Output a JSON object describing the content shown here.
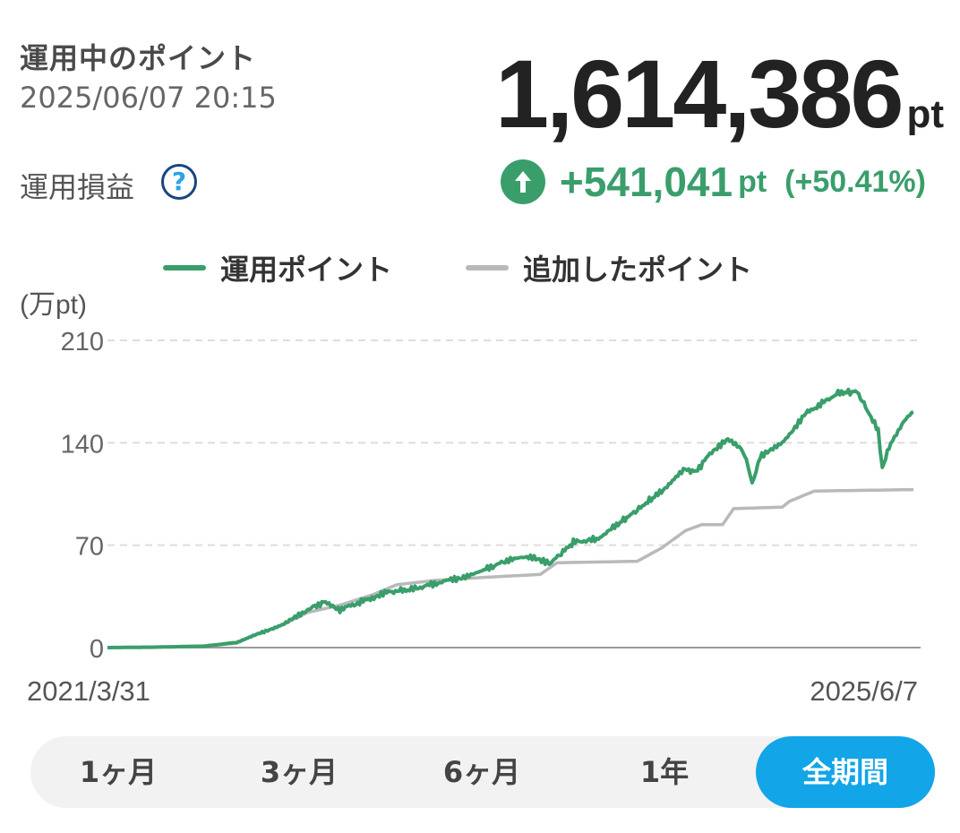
{
  "header": {
    "title": "運用中のポイント",
    "timestamp": "2025/06/07 20:15",
    "total_value": "1,614,386",
    "total_unit": "pt",
    "pl_label": "運用損益",
    "help_symbol": "?",
    "pl_value": "+541,041",
    "pl_unit": "pt",
    "pl_percent": "(+50.41%)"
  },
  "colors": {
    "accent_green": "#3a9e6b",
    "gray_line": "#b9b9b9",
    "active_tab": "#12a5e8"
  },
  "icons": {
    "help": "question-circle-icon",
    "pl": "arrow-up-circle-icon"
  },
  "chart_data": {
    "type": "line",
    "ylabel": "(万pt)",
    "ylim": [
      0,
      210
    ],
    "yticks": [
      "210",
      "140",
      "70",
      "0"
    ],
    "ytick_values": [
      210,
      140,
      70,
      0
    ],
    "x_start_label": "2021/3/31",
    "x_end_label": "2025/6/7",
    "x_start": "2021-03-31",
    "x_end": "2025-06-07",
    "grid": true,
    "legend_position": "top",
    "series": [
      {
        "name": "運用ポイント",
        "color": "#3a9e6b",
        "points": [
          [
            "2021-03-31",
            0
          ],
          [
            "2021-06-30",
            0.3
          ],
          [
            "2021-10-01",
            1.0
          ],
          [
            "2021-12-01",
            3.5
          ],
          [
            "2022-01-15",
            10
          ],
          [
            "2022-03-01",
            16
          ],
          [
            "2022-04-15",
            26
          ],
          [
            "2022-05-15",
            31
          ],
          [
            "2022-06-15",
            26
          ],
          [
            "2022-08-15",
            34
          ],
          [
            "2022-09-15",
            38
          ],
          [
            "2022-11-01",
            40
          ],
          [
            "2022-12-15",
            44
          ],
          [
            "2023-02-01",
            48
          ],
          [
            "2023-03-15",
            53
          ],
          [
            "2023-05-01",
            60
          ],
          [
            "2023-06-15",
            62
          ],
          [
            "2023-07-20",
            58
          ],
          [
            "2023-09-01",
            72
          ],
          [
            "2023-10-15",
            74
          ],
          [
            "2023-11-15",
            82
          ],
          [
            "2023-12-31",
            94
          ],
          [
            "2024-02-15",
            107
          ],
          [
            "2024-03-31",
            122
          ],
          [
            "2024-04-20",
            120
          ],
          [
            "2024-05-20",
            134
          ],
          [
            "2024-06-20",
            142
          ],
          [
            "2024-07-15",
            136
          ],
          [
            "2024-07-25",
            128
          ],
          [
            "2024-08-05",
            112
          ],
          [
            "2024-08-20",
            130
          ],
          [
            "2024-10-01",
            140
          ],
          [
            "2024-11-15",
            160
          ],
          [
            "2025-01-15",
            174
          ],
          [
            "2025-02-20",
            175
          ],
          [
            "2025-03-15",
            160
          ],
          [
            "2025-04-01",
            148
          ],
          [
            "2025-04-09",
            123
          ],
          [
            "2025-04-25",
            140
          ],
          [
            "2025-05-20",
            155
          ],
          [
            "2025-06-07",
            161
          ]
        ]
      },
      {
        "name": "追加したポイント",
        "color": "#b9b9b9",
        "points": [
          [
            "2021-03-31",
            0
          ],
          [
            "2021-10-01",
            1.0
          ],
          [
            "2021-12-01",
            3
          ],
          [
            "2022-01-15",
            10
          ],
          [
            "2022-03-01",
            16
          ],
          [
            "2022-04-15",
            24
          ],
          [
            "2022-06-15",
            29
          ],
          [
            "2022-08-15",
            36
          ],
          [
            "2022-10-01",
            43
          ],
          [
            "2022-12-15",
            46
          ],
          [
            "2023-03-15",
            48
          ],
          [
            "2023-06-30",
            50
          ],
          [
            "2023-08-01",
            58
          ],
          [
            "2023-12-31",
            59
          ],
          [
            "2024-02-15",
            68
          ],
          [
            "2024-04-01",
            80
          ],
          [
            "2024-05-01",
            84
          ],
          [
            "2024-06-10",
            84
          ],
          [
            "2024-07-01",
            95
          ],
          [
            "2024-10-01",
            96
          ],
          [
            "2024-10-15",
            100
          ],
          [
            "2024-12-01",
            107
          ],
          [
            "2025-06-07",
            108
          ]
        ]
      }
    ]
  },
  "periods": [
    {
      "label": "1ヶ月",
      "active": false
    },
    {
      "label": "3ヶ月",
      "active": false
    },
    {
      "label": "6ヶ月",
      "active": false
    },
    {
      "label": "1年",
      "active": false
    },
    {
      "label": "全期間",
      "active": true
    }
  ]
}
